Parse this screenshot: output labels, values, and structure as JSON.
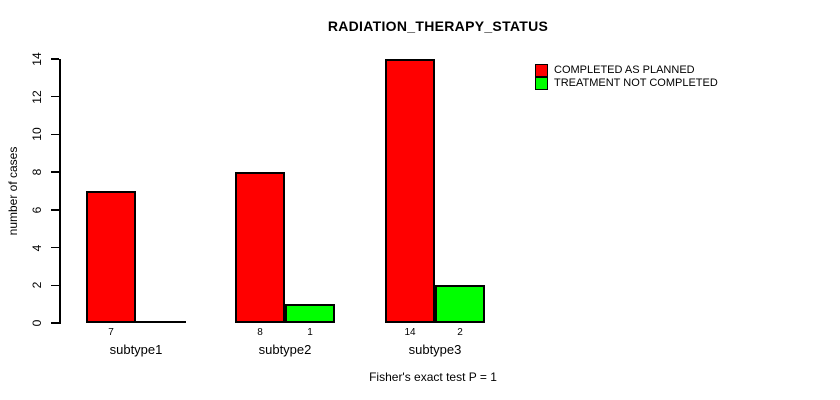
{
  "chart_data": {
    "type": "bar",
    "title": "RADIATION_THERAPY_STATUS",
    "ylabel": "number of cases",
    "footnote": "Fisher's exact test P = 1",
    "categories": [
      "subtype1",
      "subtype2",
      "subtype3"
    ],
    "series": [
      {
        "name": "COMPLETED AS PLANNED",
        "color": "#FF0000",
        "values": [
          7,
          8,
          14
        ]
      },
      {
        "name": "TREATMENT NOT COMPLETED",
        "color": "#00FF00",
        "values": [
          0,
          1,
          2
        ]
      }
    ],
    "ylim": [
      0,
      14
    ],
    "yticks": [
      0,
      2,
      4,
      6,
      8,
      10,
      12,
      14
    ],
    "grid": false,
    "legend_position": "top-right",
    "bar_value_labels": true,
    "axis_color": "#000000",
    "background_color": "#FFFFFF"
  }
}
